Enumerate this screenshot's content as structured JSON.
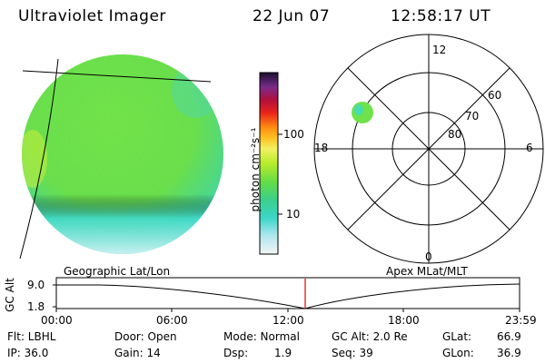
{
  "header": {
    "instrument": "Ultraviolet Imager",
    "date": "22 Jun 07",
    "time": "12:58:17 UT"
  },
  "colorbar": {
    "unit_label": "photon cm⁻²s⁻¹",
    "ticks": [
      "100",
      "10"
    ]
  },
  "polar_plot": {
    "mlt_labels": {
      "top": "12",
      "left": "18",
      "right": "6",
      "bottom": "0"
    },
    "lat_labels": [
      "60",
      "70",
      "80"
    ]
  },
  "timeline": {
    "left_label": "Geographic Lat/Lon",
    "right_label": "Apex MLat/MLT",
    "axis_title": "GC Alt",
    "y_ticks": [
      "9.0",
      "1.8"
    ],
    "x_ticks": [
      "00:00",
      "06:00",
      "12:00",
      "18:00",
      "23:59"
    ]
  },
  "footer": {
    "filter": "Flt: LBHL",
    "ip": "IP: 36.0",
    "door": "Door: Open",
    "gain": "Gain: 14",
    "mode": "Mode: Normal",
    "dsp_label": "Dsp:",
    "dsp_value": "1.9",
    "gc_alt": "GC Alt: 2.0 Re",
    "seq": "Seq: 39",
    "glat_label": "GLat:",
    "glat_value": "66.9",
    "glon_label": "GLon:",
    "glon_value": "36.9"
  },
  "colors": {
    "disk_main": "#6ee24a",
    "disk_cyan": "#3fd9c8",
    "disk_light": "#b8ecec",
    "marker_red": "#e00000"
  }
}
